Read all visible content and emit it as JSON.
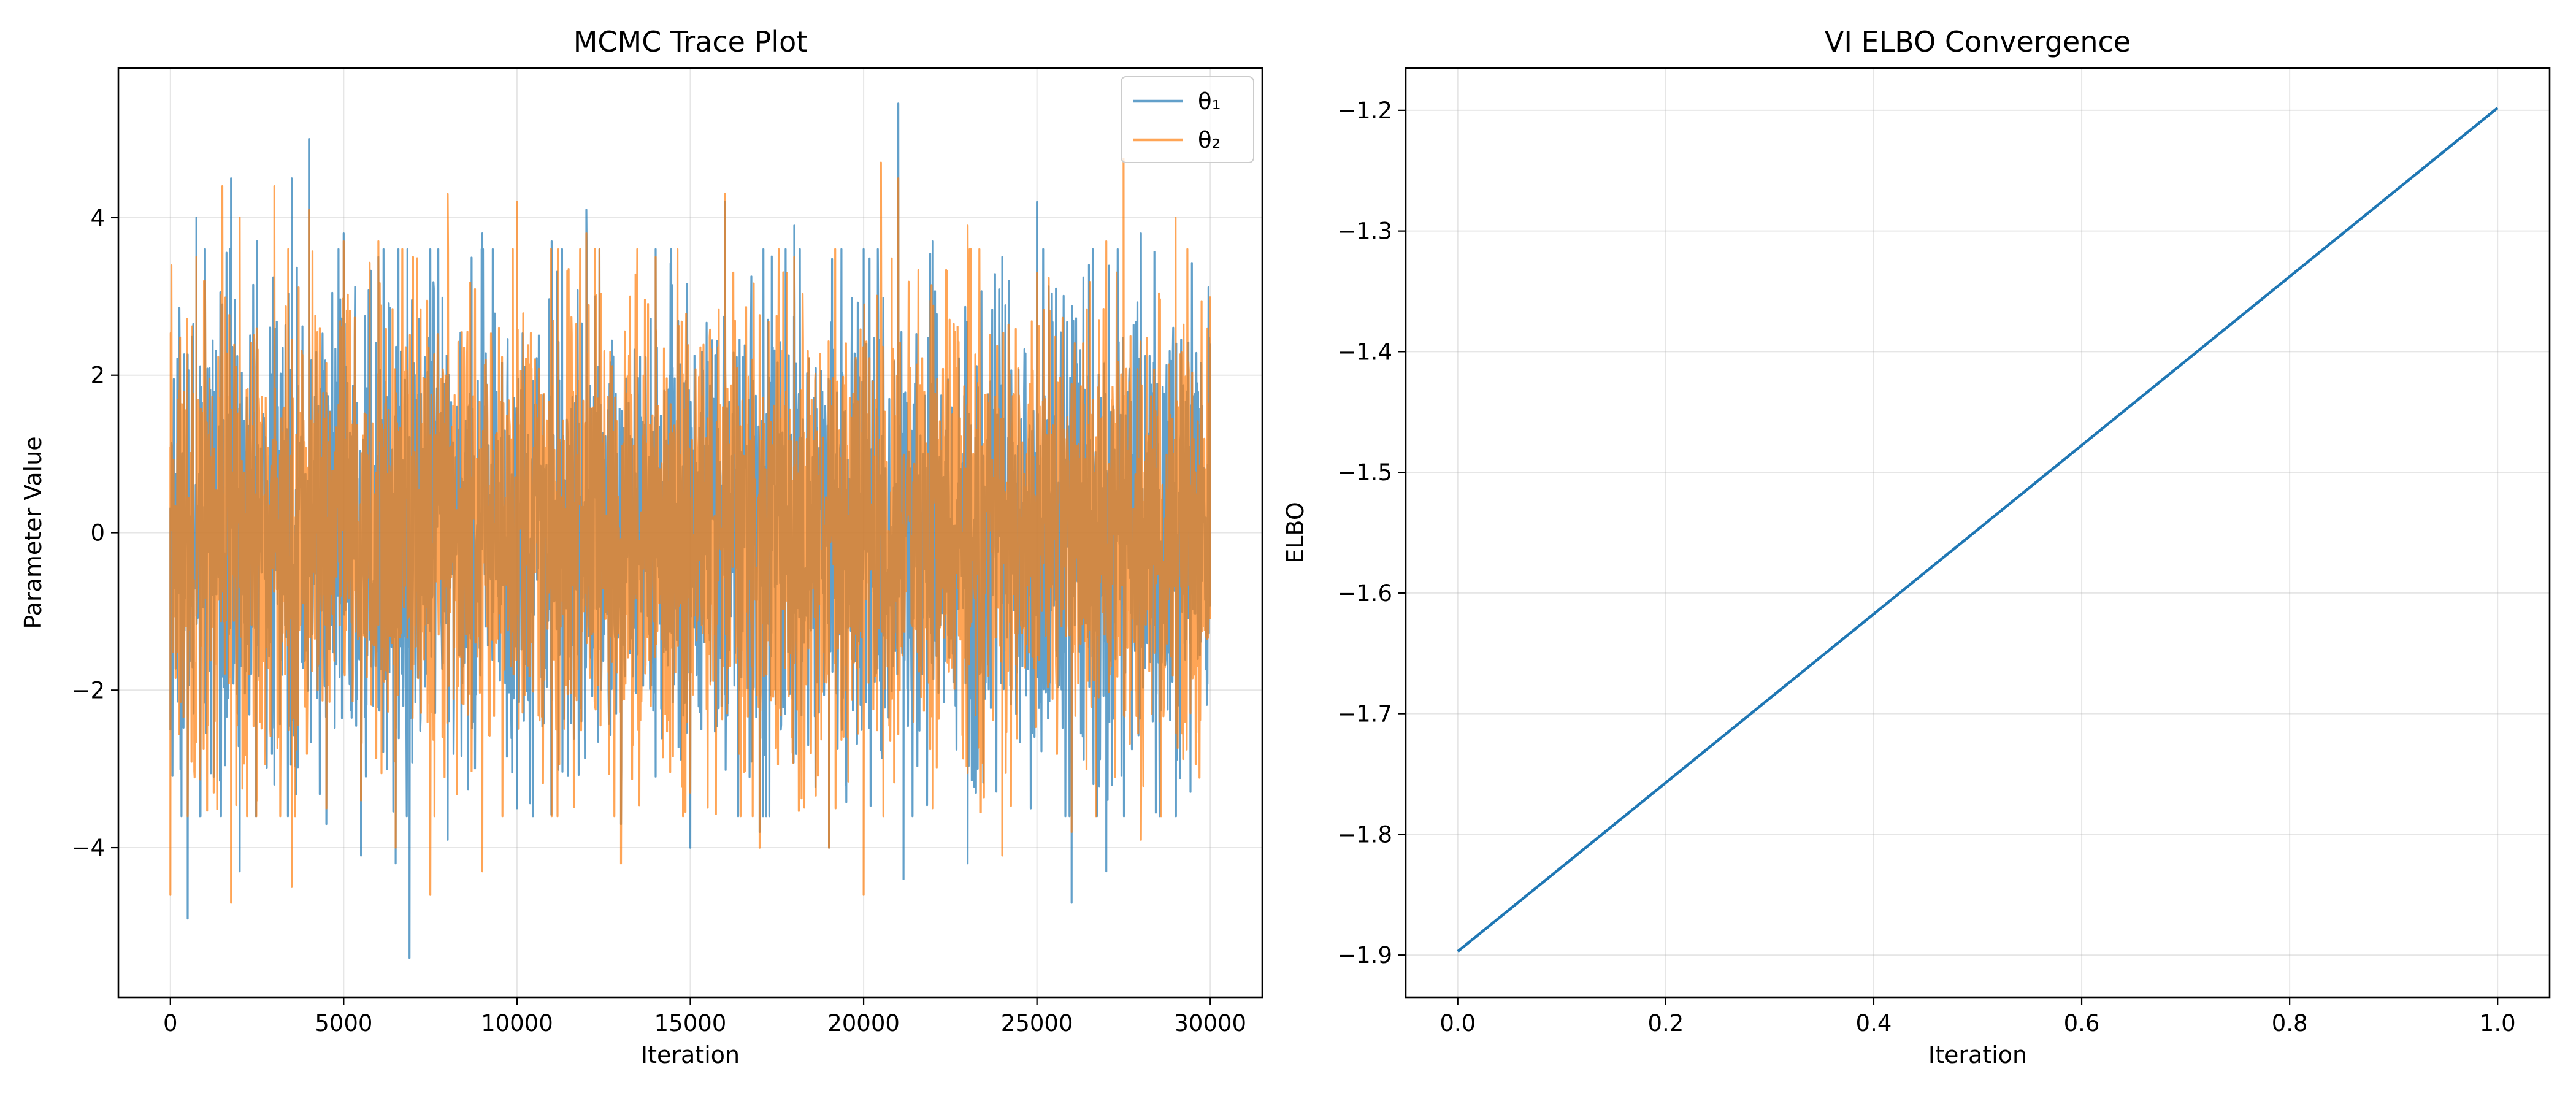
{
  "chart_data": [
    {
      "type": "line",
      "title": "MCMC Trace Plot",
      "xlabel": "Iteration",
      "ylabel": "Parameter Value",
      "xlim": [
        -1500,
        31500
      ],
      "ylim": [
        -5.9,
        5.9
      ],
      "xticks": [
        0,
        5000,
        10000,
        15000,
        20000,
        25000,
        30000
      ],
      "yticks": [
        -4,
        -2,
        0,
        2,
        4
      ],
      "grid": true,
      "legend_position": "top-right",
      "series": [
        {
          "name": "θ₁",
          "color": "#1f77b4",
          "alpha": 0.7,
          "x": [
            0,
            250,
            500,
            750,
            1000,
            1250,
            1500,
            1750,
            2000,
            2500,
            3000,
            3500,
            4000,
            4500,
            5000,
            5500,
            6000,
            6500,
            6900,
            7500,
            8000,
            9000,
            10000,
            11000,
            12000,
            13000,
            14000,
            15000,
            16000,
            17000,
            18000,
            19000,
            20000,
            21000,
            21150,
            22000,
            23000,
            24000,
            25000,
            26000,
            26500,
            27000,
            28000,
            29000,
            30000
          ],
          "y": [
            -2.5,
            2.1,
            -4.9,
            4.0,
            3.6,
            -3.1,
            2.9,
            4.5,
            -4.3,
            3.7,
            -3.2,
            4.5,
            5.0,
            -3.7,
            3.8,
            -4.1,
            3.5,
            -4.2,
            -5.4,
            3.6,
            -3.9,
            3.8,
            -3.5,
            3.7,
            4.1,
            -3.7,
            3.6,
            -4.0,
            4.2,
            -3.8,
            3.9,
            -4.0,
            3.6,
            5.45,
            -4.4,
            3.7,
            -4.2,
            3.5,
            4.2,
            -4.7,
            3.4,
            -4.3,
            3.8,
            -3.6,
            2.4
          ]
        },
        {
          "name": "θ₂",
          "color": "#ff7f0e",
          "alpha": 0.7,
          "x": [
            0,
            250,
            500,
            750,
            1000,
            1250,
            1500,
            1750,
            2000,
            2500,
            3000,
            3500,
            4000,
            4500,
            5000,
            5500,
            6000,
            6500,
            7000,
            7500,
            8000,
            9000,
            10000,
            11000,
            12000,
            13000,
            14000,
            15000,
            16000,
            17000,
            18000,
            19000,
            20000,
            20500,
            21000,
            22000,
            23000,
            24000,
            25000,
            26000,
            27000,
            27500,
            28000,
            29000,
            30000
          ],
          "y": [
            -4.6,
            1.8,
            -3.6,
            3.5,
            3.2,
            -3.3,
            4.4,
            -4.7,
            4.0,
            -3.4,
            4.4,
            -4.5,
            4.1,
            -3.5,
            3.7,
            -3.4,
            3.7,
            -4.0,
            3.5,
            -4.6,
            4.3,
            -4.3,
            4.2,
            -3.6,
            3.8,
            -4.2,
            3.5,
            -3.3,
            4.3,
            -4.0,
            3.5,
            -4.0,
            -4.6,
            4.7,
            4.5,
            -3.5,
            3.9,
            -4.1,
            3.3,
            -3.8,
            3.7,
            4.75,
            -3.9,
            4.0,
            3.0
          ]
        }
      ]
    },
    {
      "type": "line",
      "title": "VI ELBO Convergence",
      "xlabel": "Iteration",
      "ylabel": "ELBO",
      "xlim": [
        -0.05,
        1.05
      ],
      "ylim": [
        -1.935,
        -1.165
      ],
      "xticks": [
        0.0,
        0.2,
        0.4,
        0.6,
        0.8,
        1.0
      ],
      "xtick_labels": [
        "0.0",
        "0.2",
        "0.4",
        "0.6",
        "0.8",
        "1.0"
      ],
      "yticks": [
        -1.9,
        -1.8,
        -1.7,
        -1.6,
        -1.5,
        -1.4,
        -1.3,
        -1.2
      ],
      "ytick_labels": [
        "−1.9",
        "−1.8",
        "−1.7",
        "−1.6",
        "−1.5",
        "−1.4",
        "−1.3",
        "−1.2"
      ],
      "grid": true,
      "series": [
        {
          "color": "#1f77b4",
          "x": [
            0.0,
            1.0
          ],
          "y": [
            -1.897,
            -1.198
          ]
        }
      ]
    }
  ]
}
